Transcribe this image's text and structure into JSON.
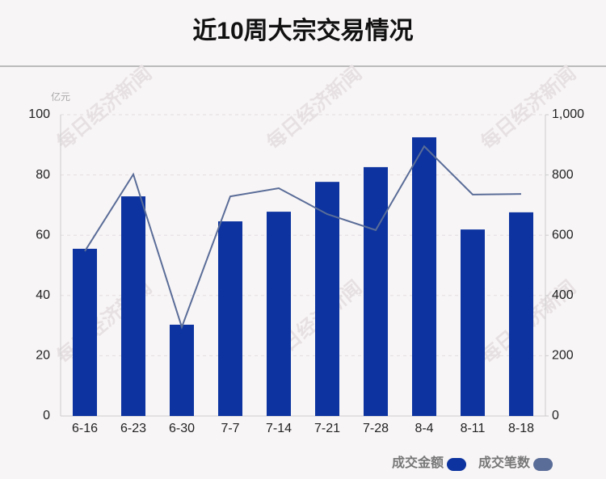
{
  "chart_data": {
    "type": "bar-line",
    "title": "近10周大宗交易情况",
    "y_unit": "亿元",
    "watermark": "每日经济新闻",
    "categories": [
      "6-16",
      "6-23",
      "6-30",
      "7-7",
      "7-14",
      "7-21",
      "7-28",
      "8-4",
      "8-11",
      "8-18"
    ],
    "series": [
      {
        "name": "成交金额",
        "type": "bar",
        "color": "#0c339f",
        "values": [
          55.5,
          72.9,
          30.3,
          64.6,
          67.8,
          77.7,
          82.6,
          92.5,
          61.9,
          67.6
        ]
      },
      {
        "name": "成交笔数",
        "type": "line",
        "axis": "y2",
        "color": "#5a6d98",
        "values": [
          547,
          802,
          295,
          729,
          756,
          670,
          617,
          895,
          735,
          737
        ]
      }
    ],
    "ylim": [
      0,
      100
    ],
    "yticks": [
      0,
      20,
      40,
      60,
      80,
      100
    ],
    "y2lim": [
      0,
      1000
    ],
    "y2ticks": [
      0,
      200,
      400,
      600,
      800,
      {
        "value": 1000,
        "label": "1,000"
      }
    ],
    "grid": true,
    "legend": "bottom-right"
  }
}
